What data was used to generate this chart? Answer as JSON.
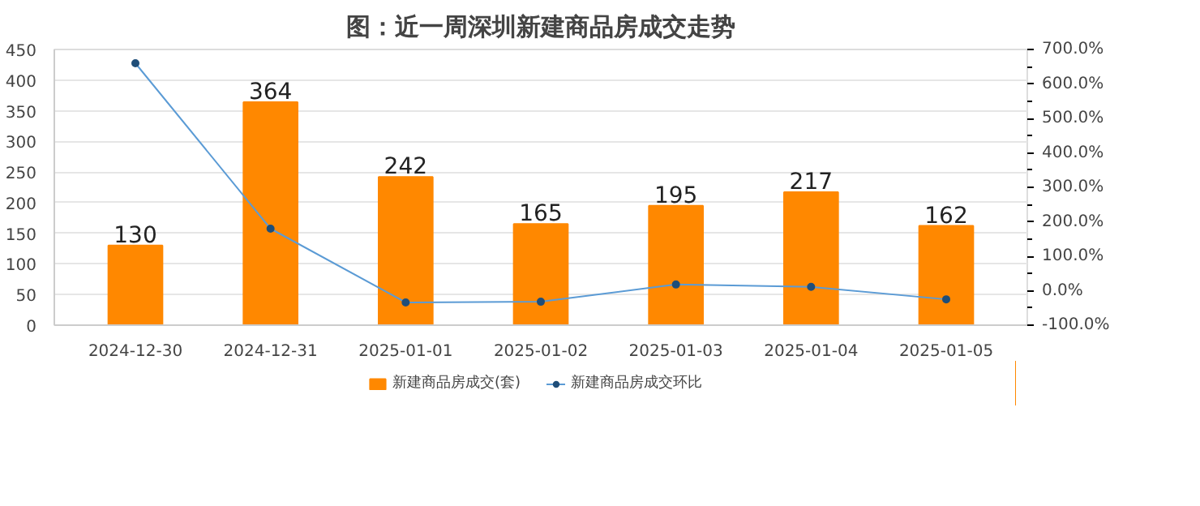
{
  "chart_data": {
    "type": "bar",
    "title": "图：近一周深圳新建商品房成交走势",
    "categories": [
      "2024-12-30",
      "2024-12-31",
      "2025-01-01",
      "2025-01-02",
      "2025-01-03",
      "2025-01-04",
      "2025-01-05"
    ],
    "series": [
      {
        "name": "新建商品房成交(套)",
        "color": "#ff8800",
        "values": [
          130,
          364,
          242,
          165,
          195,
          217,
          162
        ],
        "value_labels": [
          "130",
          "364",
          "242",
          "165",
          "195",
          "217",
          "162"
        ]
      },
      {
        "name": "新建商品房成交环比",
        "type": "line",
        "axis": "y2",
        "color": "#5b9bd5",
        "marker": "circle",
        "values": [
          660,
          180,
          -34,
          -32,
          18,
          11,
          -25
        ]
      }
    ],
    "ylim": [
      0,
      450
    ],
    "yticks": [
      0,
      50,
      100,
      150,
      200,
      250,
      300,
      350,
      400,
      450
    ],
    "y2lim": [
      -100,
      700
    ],
    "y2ticks": [
      {
        "value": -100,
        "label": "-100.0%"
      },
      {
        "value": 0,
        "label": "0.0%"
      },
      {
        "value": 100,
        "label": "100.0%"
      },
      {
        "value": 200,
        "label": "200.0%"
      },
      {
        "value": 300,
        "label": "300.0%"
      },
      {
        "value": 400,
        "label": "400.0%"
      },
      {
        "value": 500,
        "label": "500.0%"
      },
      {
        "value": 600,
        "label": "600.0%"
      },
      {
        "value": 700,
        "label": "700.0%"
      }
    ],
    "grid": "y",
    "legend": "bottom"
  }
}
